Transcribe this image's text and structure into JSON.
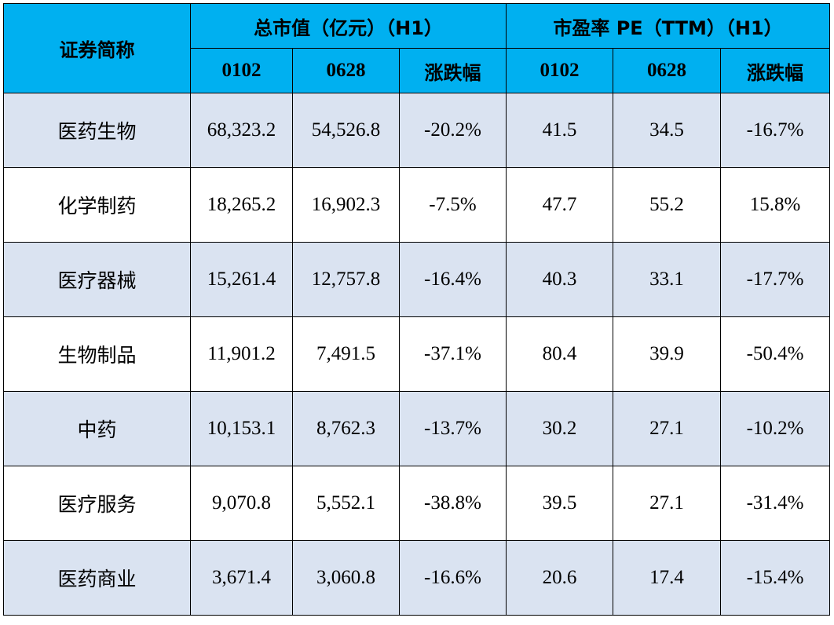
{
  "table": {
    "header": {
      "name_col": "证券简称",
      "group1": "总市值（亿元）（H1）",
      "group2": "市盈率 PE（TTM）（H1）",
      "sub_cols": [
        "0102",
        "0628",
        "涨跌幅",
        "0102",
        "0628",
        "涨跌幅"
      ]
    },
    "rows": [
      {
        "name": "医药生物",
        "cells": [
          "68,323.2",
          "54,526.8",
          "-20.2%",
          "41.5",
          "34.5",
          "-16.7%"
        ]
      },
      {
        "name": "化学制药",
        "cells": [
          "18,265.2",
          "16,902.3",
          "-7.5%",
          "47.7",
          "55.2",
          "15.8%"
        ]
      },
      {
        "name": "医疗器械",
        "cells": [
          "15,261.4",
          "12,757.8",
          "-16.4%",
          "40.3",
          "33.1",
          "-17.7%"
        ]
      },
      {
        "name": "生物制品",
        "cells": [
          "11,901.2",
          "7,491.5",
          "-37.1%",
          "80.4",
          "39.9",
          "-50.4%"
        ]
      },
      {
        "name": "中药",
        "cells": [
          "10,153.1",
          "8,762.3",
          "-13.7%",
          "30.2",
          "27.1",
          "-10.2%"
        ]
      },
      {
        "name": "医疗服务",
        "cells": [
          "9,070.8",
          "5,552.1",
          "-38.8%",
          "39.5",
          "27.1",
          "-31.4%"
        ]
      },
      {
        "name": "医药商业",
        "cells": [
          "3,671.4",
          "3,060.8",
          "-16.6%",
          "20.6",
          "17.4",
          "-15.4%"
        ]
      }
    ]
  },
  "colors": {
    "header_bg": "#00b0f0",
    "row_shaded": "#dae3f1",
    "row_plain": "#ffffff"
  }
}
